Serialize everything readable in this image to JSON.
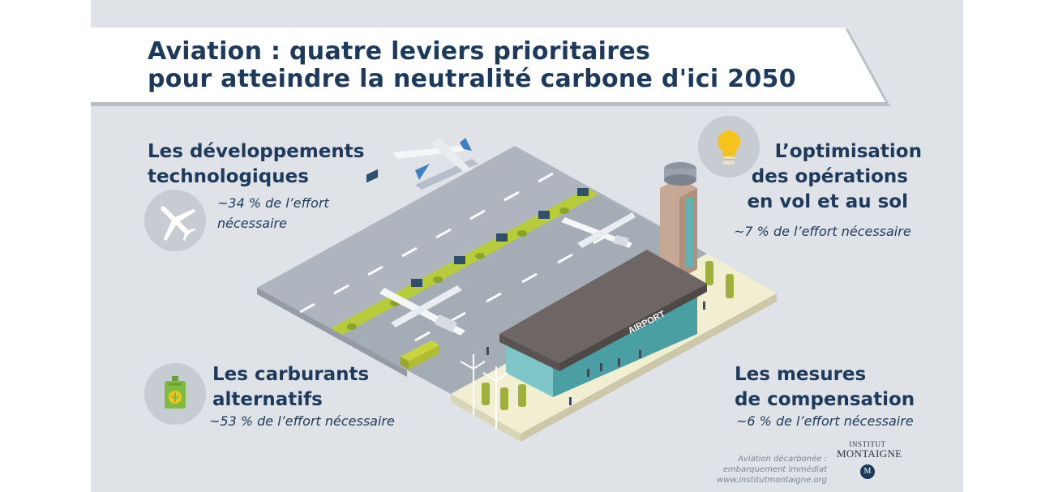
{
  "title": {
    "line1": "Aviation : quatre leviers prioritaires",
    "line2": "pour atteindre la neutralité carbone d'ici 2050"
  },
  "levers": {
    "technology": {
      "heading_line1": "Les développements",
      "heading_line2": "technologiques",
      "effort_line1": "~34 % de l’effort",
      "effort_line2": "nécessaire",
      "share_percent": 34,
      "icon": "airplane-icon"
    },
    "operations": {
      "heading_line1": "L’optimisation",
      "heading_line2": "des opérations",
      "heading_line3": "en vol et au sol",
      "effort": "~7 % de l’effort nécessaire",
      "share_percent": 7,
      "icon": "lightbulb-icon"
    },
    "fuels": {
      "heading_line1": "Les carburants",
      "heading_line2": "alternatifs",
      "effort": "~53 % de l’effort nécessaire",
      "share_percent": 53,
      "icon": "fuel-can-icon"
    },
    "offsetting": {
      "heading_line1": "Les mesures",
      "heading_line2": "de compensation",
      "effort": "~6 % de l’effort nécessaire",
      "share_percent": 6
    }
  },
  "illustration": {
    "terminal_sign": "AIRPORT"
  },
  "footer": {
    "source_line1": "Aviation décarbonée :",
    "source_line2": "embarquement immédiat",
    "source_line3": "www.institutmontaigne.org",
    "logo_line1": "INSTITUT",
    "logo_line2": "MONTAIGNE",
    "logo_mark": "M"
  },
  "colors": {
    "background": "#dfe2e6",
    "title_text": "#1d3a5c",
    "banner": "#ffffff",
    "icon_circle": "#c7ccd3",
    "runway": "#9ea6b0",
    "grass": "#b8cc3a",
    "terminal_roof": "#6e6664",
    "terminal_glass": "#5fb3b5",
    "lightbulb": "#f6c31c",
    "fuel_can": "#7fba42"
  }
}
